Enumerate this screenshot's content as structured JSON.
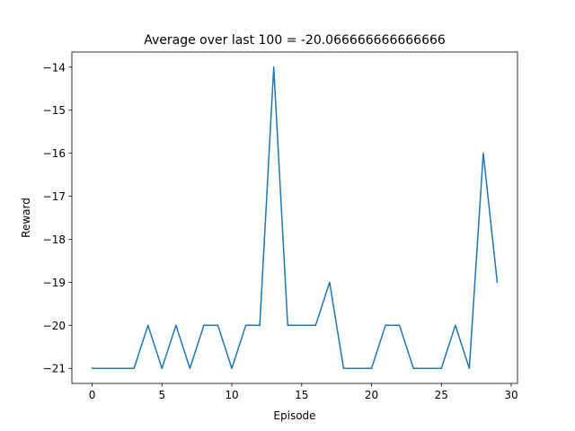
{
  "chart_data": {
    "type": "line",
    "title": "Average over last 100 = -20.066666666666666",
    "xlabel": "Episode",
    "ylabel": "Reward",
    "xlim": [
      -1.45,
      30.45
    ],
    "ylim": [
      -21.35,
      -13.65
    ],
    "xticks": [
      0,
      5,
      10,
      15,
      20,
      25,
      30
    ],
    "xtick_labels": [
      "0",
      "5",
      "10",
      "15",
      "20",
      "25",
      "30"
    ],
    "yticks": [
      -21,
      -20,
      -19,
      -18,
      -17,
      -16,
      -15,
      -14
    ],
    "ytick_labels": [
      "−21",
      "−20",
      "−19",
      "−18",
      "−17",
      "−16",
      "−15",
      "−14"
    ],
    "grid": false,
    "legend": false,
    "series": [
      {
        "color": "#1f77b4",
        "x": [
          0,
          1,
          2,
          3,
          4,
          5,
          6,
          7,
          8,
          9,
          10,
          11,
          12,
          13,
          14,
          15,
          16,
          17,
          18,
          19,
          20,
          21,
          22,
          23,
          24,
          25,
          26,
          27,
          28,
          29
        ],
        "y": [
          -21,
          -21,
          -21,
          -21,
          -20,
          -21,
          -20,
          -21,
          -20,
          -20,
          -21,
          -20,
          -20,
          -14,
          -20,
          -20,
          -20,
          -19,
          -21,
          -21,
          -21,
          -20,
          -20,
          -21,
          -21,
          -21,
          -20,
          -21,
          -16,
          -19
        ]
      }
    ]
  }
}
